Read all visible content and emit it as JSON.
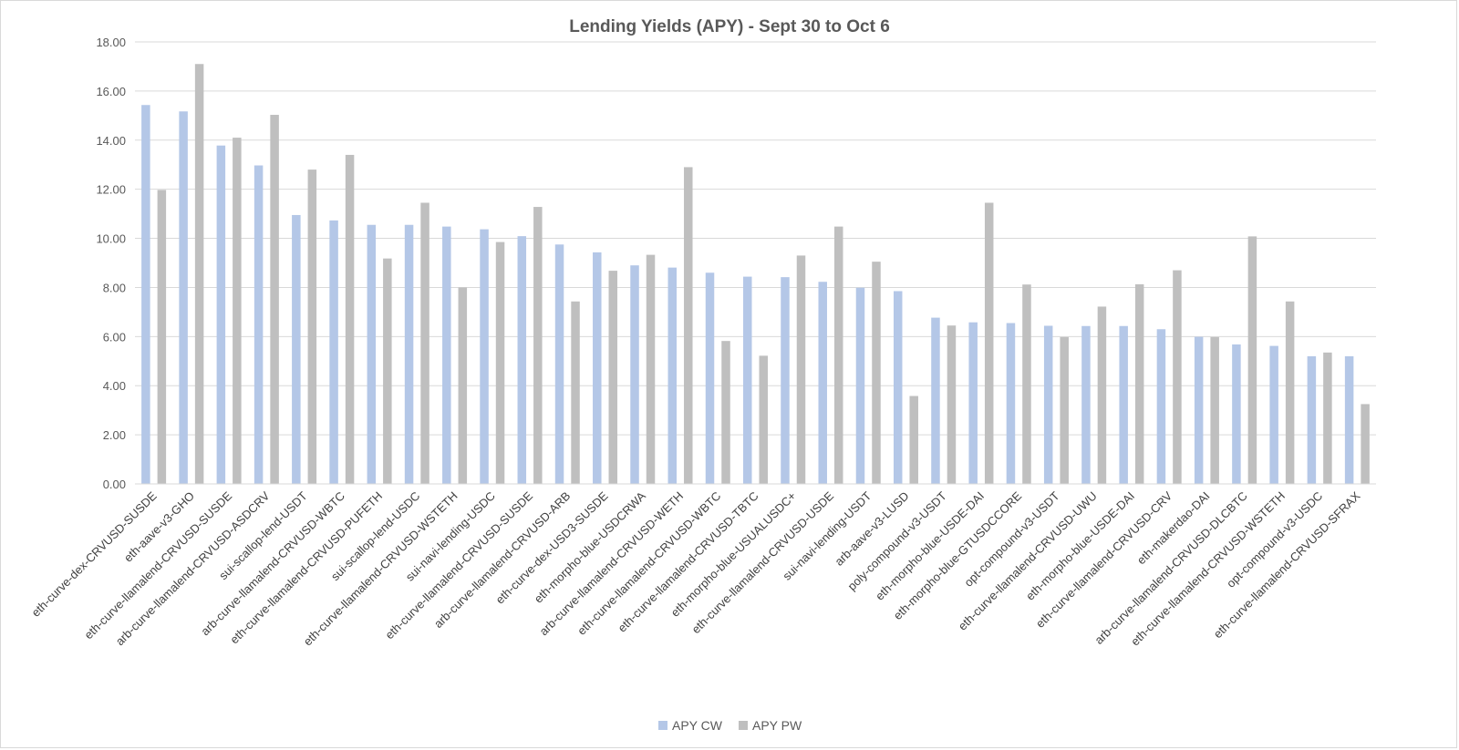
{
  "chart_data": {
    "type": "bar",
    "title": "Lending Yields (APY) - Sept 30 to Oct 6",
    "xlabel": "",
    "ylabel": "",
    "ylim": [
      0,
      18
    ],
    "ytick_step": 2,
    "ytick_labels": [
      "0.00",
      "2.00",
      "4.00",
      "6.00",
      "8.00",
      "10.00",
      "12.00",
      "14.00",
      "16.00",
      "18.00"
    ],
    "grid": true,
    "legend_position": "bottom-center",
    "colors": {
      "APY CW": "#b4c7e7",
      "APY PW": "#bfbfbf"
    },
    "categories": [
      "eth-curve-dex-CRVUSD-SUSDE",
      "eth-aave-v3-GHO",
      "eth-curve-llamalend-CRVUSD-SUSDE",
      "arb-curve-llamalend-CRVUSD-ASDCRV",
      "sui-scallop-lend-USDT",
      "arb-curve-llamalend-CRVUSD-WBTC",
      "eth-curve-llamalend-CRVUSD-PUFETH",
      "sui-scallop-lend-USDC",
      "eth-curve-llamalend-CRVUSD-WSTETH",
      "sui-navi-lending-USDC",
      "eth-curve-llamalend-CRVUSD-SUSDE",
      "arb-curve-llamalend-CRVUSD-ARB",
      "eth-curve-dex-USD3-SUSDE",
      "eth-morpho-blue-USDCRWA",
      "arb-curve-llamalend-CRVUSD-WETH",
      "eth-curve-llamalend-CRVUSD-WBTC",
      "eth-curve-llamalend-CRVUSD-TBTC",
      "eth-morpho-blue-USUALUSDC+",
      "eth-curve-llamalend-CRVUSD-USDE",
      "sui-navi-lending-USDT",
      "arb-aave-v3-LUSD",
      "poly-compound-v3-USDT",
      "eth-morpho-blue-USDE-DAI",
      "eth-morpho-blue-GTUSDCCORE",
      "opt-compound-v3-USDT",
      "eth-curve-llamalend-CRVUSD-UWU",
      "eth-morpho-blue-USDE-DAI",
      "eth-curve-llamalend-CRVUSD-CRV",
      "eth-makerdao-DAI",
      "arb-curve-llamalend-CRVUSD-DLCBTC",
      "eth-curve-llamalend-CRVUSD-WSTETH",
      "opt-compound-v3-USDC",
      "eth-curve-llamalend-CRVUSD-SFRAX"
    ],
    "series": [
      {
        "name": "APY CW",
        "values": [
          15.43,
          15.17,
          13.78,
          12.97,
          10.95,
          10.73,
          10.55,
          10.55,
          10.48,
          10.37,
          10.09,
          9.75,
          9.43,
          8.9,
          8.81,
          8.6,
          8.44,
          8.42,
          8.23,
          7.99,
          7.85,
          6.77,
          6.58,
          6.55,
          6.44,
          6.43,
          6.43,
          6.3,
          5.99,
          5.68,
          5.62,
          5.2,
          5.2
        ]
      },
      {
        "name": "APY PW",
        "values": [
          11.97,
          17.1,
          14.1,
          15.03,
          12.8,
          13.4,
          9.18,
          11.45,
          8.0,
          9.85,
          11.28,
          7.43,
          8.68,
          9.33,
          12.9,
          5.82,
          5.22,
          9.3,
          10.48,
          9.05,
          3.58,
          6.45,
          11.45,
          8.12,
          5.98,
          7.22,
          8.13,
          8.7,
          5.98,
          10.08,
          7.43,
          5.35,
          3.25
        ]
      }
    ]
  }
}
